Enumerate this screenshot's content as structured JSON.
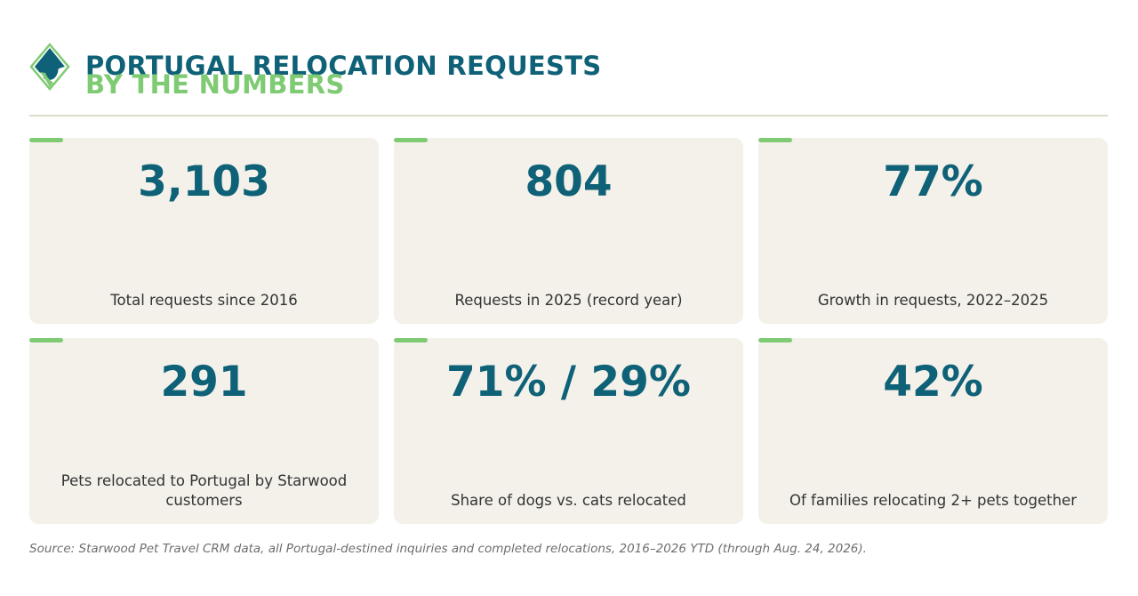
{
  "header": {
    "title_line1": "PORTUGAL RELOCATION REQUESTS",
    "title_line2": "BY THE NUMBERS",
    "logo_icon": "dog-cat-diamond-logo-icon"
  },
  "stats": [
    {
      "value": "3,103",
      "label": "Total requests since 2016"
    },
    {
      "value": "804",
      "label": "Requests in 2025 (record year)"
    },
    {
      "value": "77%",
      "label": "Growth in requests, 2022–2025"
    },
    {
      "value": "291",
      "label": "Pets relocated to Portugal by Starwood customers"
    },
    {
      "value": "71% / 29%",
      "label": "Share of dogs vs. cats relocated"
    },
    {
      "value": "42%",
      "label": "Of families relocating 2+ pets together"
    }
  ],
  "source": "Source: Starwood Pet Travel CRM data, all Portugal-destined inquiries and completed relocations, 2016–2026 YTD (through Aug. 24, 2026).",
  "colors": {
    "primary": "#0f6177",
    "accent": "#7fcb73",
    "card_bg": "#f3f1ea"
  }
}
